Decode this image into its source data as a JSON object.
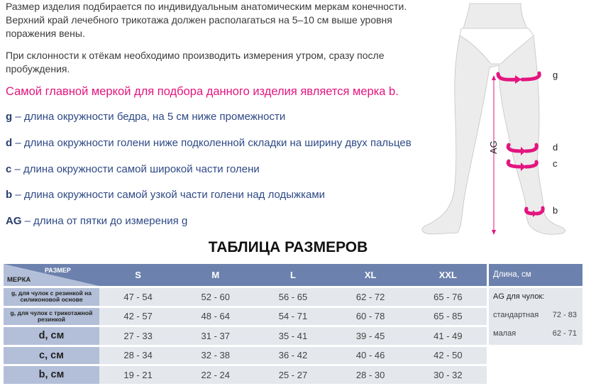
{
  "intro": {
    "p1": "Размер изделия подбирается по индивидуальным анатомическим меркам конечности. Верхний край лечебного трикотажа должен располагаться на 5–10 см выше уровня поражения вены.",
    "p2": "При склонности к отёкам необходимо производить измерения утром, сразу после пробуждения.",
    "highlight": "Самой главной меркой для подбора данного изделия является мерка b."
  },
  "definitions": [
    {
      "key": "g",
      "text": " – длина окружности бедра, на 5 см ниже промежности"
    },
    {
      "key": "d",
      "text": " – длина окружности голени ниже подколенной складки на ширину двух пальцев"
    },
    {
      "key": "c",
      "text": " – длина окружности самой широкой части голени"
    },
    {
      "key": "b",
      "text": " – длина окружности самой узкой части голени над лодыжками"
    },
    {
      "key": "AG",
      "text": " – длина от пятки до измерения g"
    }
  ],
  "figure": {
    "labels": {
      "g": "g",
      "d": "d",
      "c": "c",
      "b": "b",
      "ag": "AG"
    }
  },
  "table": {
    "title": "ТАБЛИЦА РАЗМЕРОВ",
    "corner_size": "РАЗМЕР",
    "corner_measure": "МЕРКА",
    "sizes": [
      "S",
      "M",
      "L",
      "XL",
      "XXL"
    ],
    "rows": [
      {
        "label": "g, для чулок с  резинкой на силиконовой основе",
        "values": [
          "47 - 54",
          "52 - 60",
          "56 - 65",
          "62 - 72",
          "65 - 76"
        ]
      },
      {
        "label": "g, для чулок с трикотажной резинкой",
        "values": [
          "42 - 57",
          "48 - 64",
          "54 - 71",
          "60 - 78",
          "65 - 85"
        ]
      },
      {
        "label": "d, см",
        "values": [
          "27 - 33",
          "31 - 37",
          "35 - 41",
          "39 - 45",
          "41 - 49"
        ]
      },
      {
        "label": "c, см",
        "values": [
          "28 - 34",
          "32 - 38",
          "36 - 42",
          "40 - 46",
          "42 - 50"
        ]
      },
      {
        "label": "b, см",
        "values": [
          "19 - 21",
          "22 - 24",
          "25 - 27",
          "28 - 30",
          "30 - 32"
        ]
      }
    ]
  },
  "length_table": {
    "header": "Длина, см",
    "subtitle": "AG для чулок:",
    "rows": [
      {
        "label": "стандартная",
        "value": "72 - 83"
      },
      {
        "label": "малая",
        "value": "62 - 71"
      }
    ]
  },
  "colors": {
    "accent": "#e3157f",
    "header": "#6c81ad",
    "label_cell": "#b3bfd8",
    "value_cell": "#e4e7ec",
    "text_blue": "#2f4a86"
  }
}
